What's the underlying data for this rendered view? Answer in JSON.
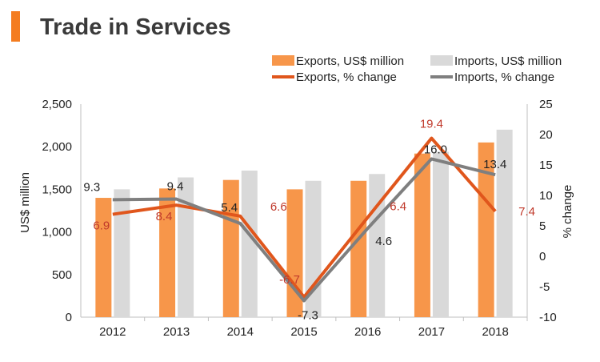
{
  "header": {
    "title": "Trade in Services"
  },
  "colors": {
    "accent": "#f47c20",
    "exports_bar": "#f7964a",
    "imports_bar": "#d9d9d9",
    "exports_line": "#e0561c",
    "imports_line": "#7f7f7f",
    "export_label": "#c0392b",
    "axis": "#bfbfbf"
  },
  "chart_data": {
    "type": "bar",
    "title": "Trade in Services",
    "categories": [
      "2012",
      "2013",
      "2014",
      "2015",
      "2016",
      "2017",
      "2018"
    ],
    "ylabel": "US$ million",
    "y2label": "% change",
    "ylim": [
      0,
      2500
    ],
    "y2lim": [
      -10,
      25
    ],
    "yticks": [
      0,
      500,
      1000,
      1500,
      2000,
      2500
    ],
    "yticklabels": [
      "0",
      "500",
      "1,000",
      "1,500",
      "2,000",
      "2,500"
    ],
    "y2ticks": [
      -10,
      -5,
      0,
      5,
      10,
      15,
      20,
      25
    ],
    "y2ticklabels": [
      "-10",
      "-5",
      "0",
      "5",
      "10",
      "15",
      "20",
      "25"
    ],
    "legend_position": "top-right",
    "bar_series": [
      {
        "name": "Exports, US$ million",
        "values": [
          1400,
          1510,
          1610,
          1500,
          1600,
          1920,
          2050
        ]
      },
      {
        "name": "Imports, US$ million",
        "values": [
          1500,
          1640,
          1720,
          1600,
          1680,
          1940,
          2200
        ]
      }
    ],
    "line_series": [
      {
        "name": "Exports, % change",
        "values": [
          6.9,
          8.4,
          6.6,
          -6.7,
          6.4,
          19.4,
          7.4
        ],
        "labels": [
          "6.9",
          "8.4",
          "6.6",
          "-6.7",
          "6.4",
          "19.4",
          "7.4"
        ]
      },
      {
        "name": "Imports, % change",
        "values": [
          9.3,
          9.4,
          5.4,
          -7.3,
          4.6,
          16.0,
          13.4
        ],
        "labels": [
          "9.3",
          "9.4",
          "5.4",
          "-7.3",
          "4.6",
          "16.0",
          "13.4"
        ]
      }
    ]
  }
}
